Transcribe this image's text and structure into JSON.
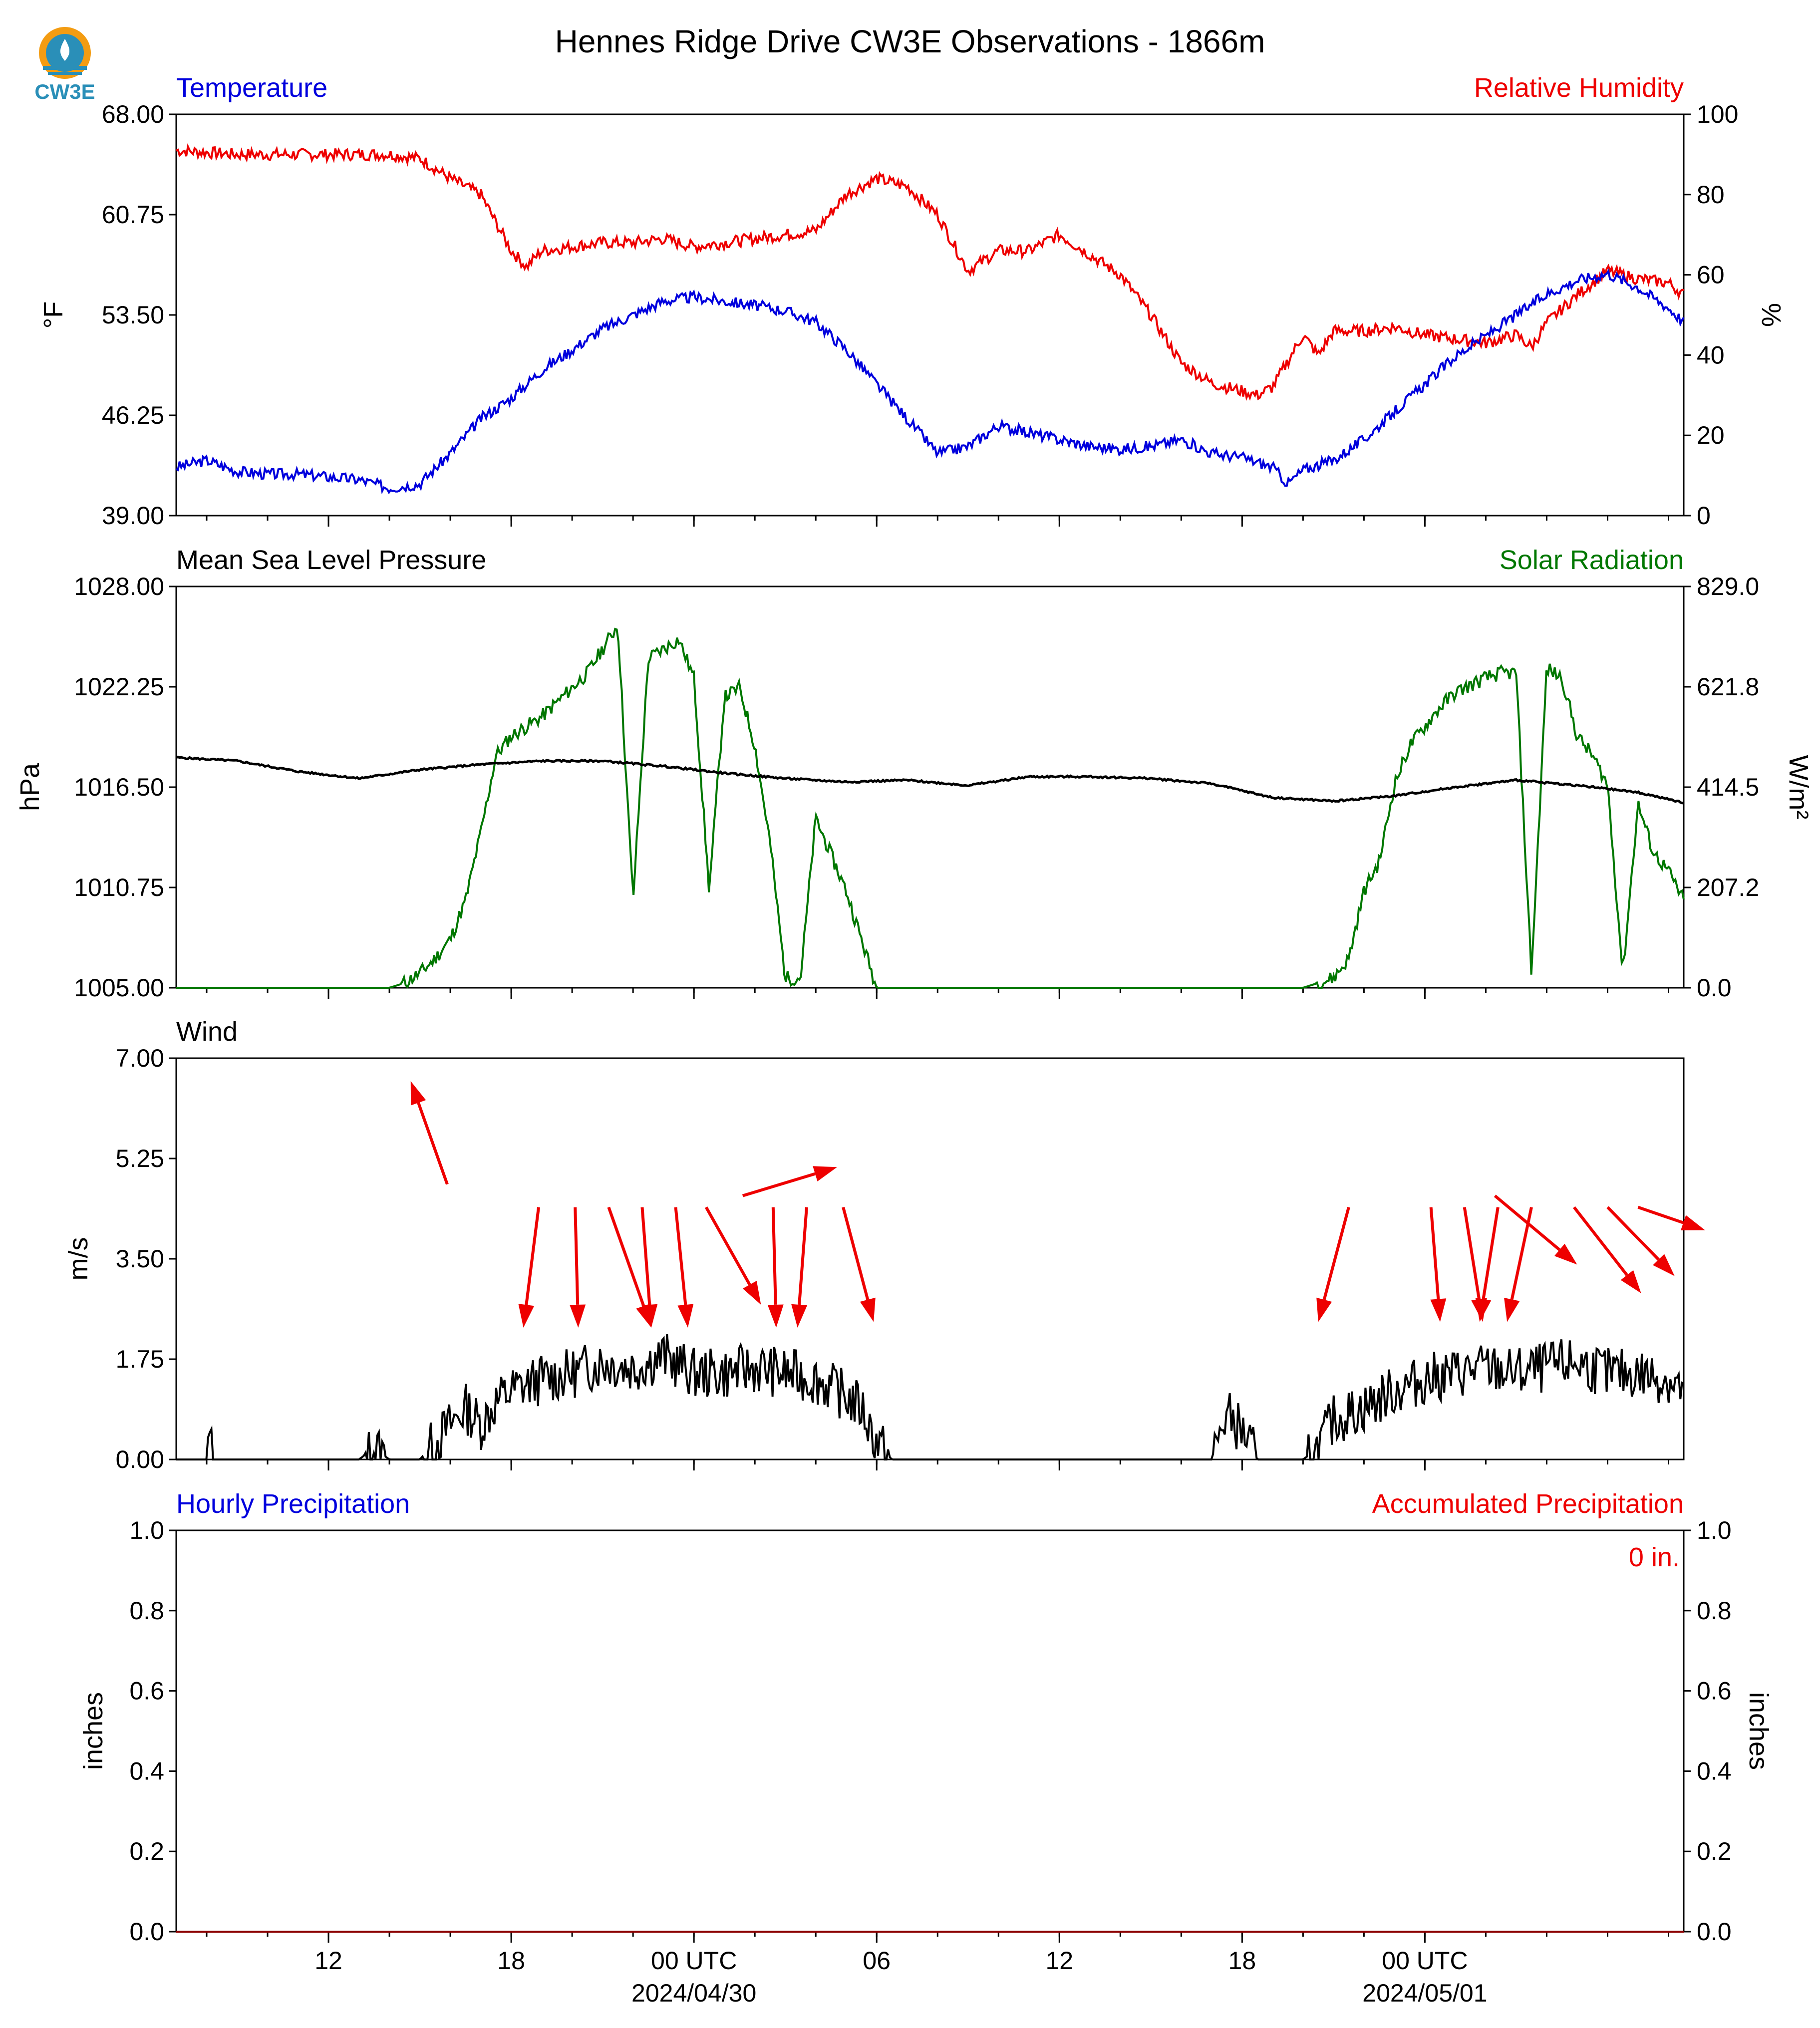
{
  "title": "Hennes Ridge Drive CW3E Observations - 1866m",
  "logo_text": "CW3E",
  "colors": {
    "blue": "#0000dd",
    "red": "#ee0000",
    "green": "#007700",
    "black": "#000000",
    "logo": "#2a8fb8",
    "logo_sun": "#f39c12"
  },
  "x_axis": {
    "ticks": [
      {
        "hour": 12,
        "label": "12",
        "sub": ""
      },
      {
        "hour": 18,
        "label": "18",
        "sub": ""
      },
      {
        "hour": 24,
        "label": "00 UTC",
        "sub": "2024/04/30"
      },
      {
        "hour": 30,
        "label": "06",
        "sub": ""
      },
      {
        "hour": 36,
        "label": "12",
        "sub": ""
      },
      {
        "hour": 42,
        "label": "18",
        "sub": ""
      },
      {
        "hour": 48,
        "label": "00 UTC",
        "sub": "2024/05/01"
      }
    ],
    "minor_every_hours": 2
  },
  "panels": {
    "temp_rh": {
      "left_title": "Temperature",
      "right_title": "Relative Humidity",
      "left_unit": "°F",
      "right_unit": "%",
      "left_ticks": [
        "68.00",
        "60.75",
        "53.50",
        "46.25",
        "39.00"
      ],
      "right_ticks": [
        "100",
        "80",
        "60",
        "40",
        "20",
        "0"
      ]
    },
    "pres_solar": {
      "left_title": "Mean Sea Level Pressure",
      "right_title": "Solar Radiation",
      "left_unit": "hPa",
      "right_unit": "W/m²",
      "left_ticks": [
        "1028.00",
        "1022.25",
        "1016.50",
        "1010.75",
        "1005.00"
      ],
      "right_ticks": [
        "829.0",
        "621.8",
        "414.5",
        "207.2",
        "0.0"
      ]
    },
    "wind": {
      "left_title": "Wind",
      "left_unit": "m/s",
      "left_ticks": [
        "7.00",
        "5.25",
        "3.50",
        "1.75",
        "0.00"
      ]
    },
    "precip": {
      "left_title": "Hourly Precipitation",
      "right_title": "Accumulated Precipitation",
      "left_unit": "inches",
      "right_unit": "inches",
      "left_ticks": [
        "1.0",
        "0.8",
        "0.6",
        "0.4",
        "0.2",
        "0.0"
      ],
      "right_ticks": [
        "1.0",
        "0.8",
        "0.6",
        "0.4",
        "0.2",
        "0.0"
      ],
      "accum_label": "0 in."
    }
  },
  "chart_data": [
    {
      "type": "line",
      "title": "Temperature",
      "xlabel": "",
      "ylabel": "°F",
      "x_units": "hours since 2024-04-29 07 UTC",
      "ylim": [
        39.0,
        68.0
      ],
      "series": [
        {
          "name": "Temperature",
          "axis": "left",
          "x": [
            0,
            1,
            2,
            3,
            4,
            5,
            6,
            7,
            8,
            9,
            10,
            11,
            12,
            13,
            14,
            15,
            16,
            17,
            18,
            19,
            20,
            21,
            22,
            23,
            24,
            25,
            26,
            27,
            28,
            29,
            30,
            31,
            32,
            33,
            34,
            35,
            36,
            36.5,
            37,
            38,
            39,
            40,
            41,
            42,
            43,
            44,
            45,
            46,
            47,
            48,
            49,
            49.5
          ],
          "y": [
            42.5,
            43.0,
            42.2,
            42.0,
            42.0,
            41.8,
            41.6,
            41.0,
            41.3,
            43.5,
            46.0,
            47.5,
            49.5,
            51.0,
            52.5,
            53.5,
            54.5,
            54.8,
            54.5,
            54.2,
            53.8,
            53.0,
            51.0,
            48.5,
            46.0,
            43.5,
            44.0,
            45.5,
            45.0,
            44.5,
            44.0,
            43.8,
            44.0,
            44.5,
            43.5,
            43.2,
            42.5,
            41.3,
            42.3,
            43.0,
            44.5,
            46.5,
            48.5,
            50.5,
            52.0,
            53.5,
            55.0,
            56.0,
            56.5,
            55.5,
            54.0,
            53.0
          ]
        },
        {
          "name": "Relative Humidity",
          "axis": "right",
          "ylim": [
            0,
            100
          ],
          "x": [
            0,
            2,
            4,
            6,
            7,
            8,
            9,
            10,
            11,
            11.5,
            12,
            13,
            14,
            15,
            16,
            17,
            18,
            19,
            20,
            21,
            22,
            23,
            24,
            25,
            26,
            27,
            28,
            29,
            30,
            31,
            32,
            33,
            34,
            35,
            35.5,
            36,
            37,
            37.5,
            38,
            39,
            40,
            41,
            42,
            43,
            44,
            44.5,
            45,
            46,
            47,
            48,
            49,
            49.5
          ],
          "y": [
            91,
            90,
            90,
            90,
            90,
            89,
            84,
            80,
            66,
            62,
            66,
            67,
            68,
            68,
            69,
            67,
            68,
            69,
            70,
            71,
            80,
            84,
            82,
            75,
            61,
            66,
            66,
            70,
            65,
            60,
            50,
            38,
            33,
            31,
            30,
            32,
            45,
            40,
            46,
            46,
            47,
            45,
            44,
            43,
            45,
            42,
            48,
            55,
            61,
            59,
            58,
            55
          ]
        }
      ]
    },
    {
      "type": "line",
      "title": "Mean Sea Level Pressure",
      "xlabel": "",
      "ylabel": "hPa",
      "x_units": "hours since 2024-04-29 07 UTC",
      "ylim": [
        1005.0,
        1028.0
      ],
      "series": [
        {
          "name": "Mean Sea Level Pressure",
          "axis": "left",
          "x": [
            0,
            2,
            4,
            6,
            8,
            10,
            12,
            14,
            16,
            18,
            20,
            22,
            24,
            26,
            28,
            30,
            32,
            34,
            36,
            38,
            40,
            42,
            44,
            46,
            48,
            49.5
          ],
          "y": [
            1018.2,
            1018.0,
            1017.4,
            1017.0,
            1017.5,
            1017.8,
            1018.0,
            1018.0,
            1017.7,
            1017.3,
            1017.0,
            1016.8,
            1016.9,
            1016.6,
            1017.1,
            1017.1,
            1017.0,
            1016.7,
            1015.9,
            1015.7,
            1016.0,
            1016.5,
            1016.9,
            1016.6,
            1016.2,
            1015.6
          ]
        },
        {
          "name": "Solar Radiation",
          "axis": "right",
          "ylim": [
            0,
            829
          ],
          "x": [
            0,
            6,
            7,
            7.5,
            8,
            8.5,
            9,
            9.5,
            10,
            10.5,
            11,
            12,
            13,
            13.5,
            14,
            14.5,
            15,
            15.5,
            16,
            16.5,
            17,
            17.5,
            18,
            18.5,
            19,
            19.5,
            20,
            20.5,
            21,
            22,
            22.5,
            23,
            24,
            30,
            36,
            37,
            38,
            38.5,
            39,
            39.5,
            40,
            40.5,
            41,
            41.5,
            42,
            43,
            43.5,
            44,
            44.5,
            45,
            45.5,
            46,
            46.5,
            47,
            47.5,
            48,
            48.5,
            49,
            49.5
          ],
          "y": [
            0,
            0,
            0,
            10,
            30,
            60,
            100,
            180,
            320,
            480,
            520,
            560,
            620,
            650,
            700,
            750,
            180,
            680,
            700,
            720,
            640,
            200,
            600,
            620,
            500,
            300,
            20,
            20,
            350,
            200,
            100,
            0,
            0,
            0,
            0,
            0,
            20,
            60,
            200,
            260,
            420,
            500,
            540,
            580,
            610,
            640,
            650,
            650,
            30,
            660,
            640,
            520,
            480,
            420,
            30,
            380,
            280,
            240,
            180
          ]
        }
      ]
    },
    {
      "type": "line",
      "title": "Wind",
      "xlabel": "",
      "ylabel": "m/s",
      "x_units": "hours since 2024-04-29 07 UTC",
      "ylim": [
        0.0,
        7.0
      ],
      "series": [
        {
          "name": "Wind speed",
          "x": [
            0,
            1,
            1.1,
            1.2,
            6,
            6.5,
            7,
            8,
            8.5,
            9,
            9.5,
            10,
            10.5,
            11,
            12,
            13,
            14,
            15,
            16,
            17,
            18,
            19,
            20,
            21,
            22,
            22.5,
            23,
            23.5,
            24,
            34,
            34.5,
            35,
            35.5,
            36,
            37,
            37.5,
            38,
            39,
            40,
            41,
            42,
            43,
            44,
            45,
            46,
            47,
            48,
            49,
            49.5
          ],
          "y": [
            0,
            0,
            0.4,
            0,
            0,
            0.2,
            0,
            0,
            0.3,
            0.6,
            0.9,
            0.6,
            1.0,
            1.2,
            1.4,
            1.5,
            1.7,
            1.6,
            1.8,
            1.5,
            1.5,
            1.6,
            1.5,
            1.4,
            1.1,
            0.9,
            0.3,
            0,
            0,
            0,
            0.8,
            0.5,
            0,
            0,
            0,
            0.2,
            0.7,
            0.9,
            1.2,
            1.4,
            1.5,
            1.6,
            1.5,
            1.6,
            1.7,
            1.5,
            1.5,
            1.4,
            1.2
          ]
        }
      ],
      "wind_arrows": [
        {
          "x": 8.9,
          "y": 4.8,
          "dx": -1.2,
          "dy": 1.8
        },
        {
          "x": 11.9,
          "y": 4.4,
          "dx": -0.5,
          "dy": -2.1
        },
        {
          "x": 13.1,
          "y": 4.4,
          "dx": 0.1,
          "dy": -2.1
        },
        {
          "x": 14.2,
          "y": 4.4,
          "dx": 1.4,
          "dy": -2.1
        },
        {
          "x": 15.3,
          "y": 4.4,
          "dx": 0.3,
          "dy": -2.1
        },
        {
          "x": 16.4,
          "y": 4.4,
          "dx": 0.4,
          "dy": -2.1
        },
        {
          "x": 17.4,
          "y": 4.4,
          "dx": 1.8,
          "dy": -1.7
        },
        {
          "x": 18.6,
          "y": 4.6,
          "dx": 3.1,
          "dy": 0.5
        },
        {
          "x": 19.6,
          "y": 4.4,
          "dx": 0.1,
          "dy": -2.1
        },
        {
          "x": 20.7,
          "y": 4.4,
          "dx": -0.3,
          "dy": -2.1
        },
        {
          "x": 21.9,
          "y": 4.4,
          "dx": 1.0,
          "dy": -2.0
        },
        {
          "x": 38.5,
          "y": 4.4,
          "dx": -1.0,
          "dy": -2.0
        },
        {
          "x": 41.2,
          "y": 4.4,
          "dx": 0.3,
          "dy": -2.0
        },
        {
          "x": 42.3,
          "y": 4.4,
          "dx": 0.6,
          "dy": -2.0
        },
        {
          "x": 43.4,
          "y": 4.4,
          "dx": -0.6,
          "dy": -2.0
        },
        {
          "x": 44.5,
          "y": 4.4,
          "dx": -0.8,
          "dy": -2.0
        },
        {
          "x": 43.3,
          "y": 4.6,
          "dx": 2.7,
          "dy": -1.2
        },
        {
          "x": 45.9,
          "y": 4.4,
          "dx": 2.2,
          "dy": -1.5
        },
        {
          "x": 47.0,
          "y": 4.4,
          "dx": 2.2,
          "dy": -1.2
        },
        {
          "x": 48.0,
          "y": 4.4,
          "dx": 2.2,
          "dy": -0.4
        }
      ]
    },
    {
      "type": "line",
      "title": "Hourly Precipitation",
      "xlabel": "",
      "ylabel": "inches",
      "x_units": "hours since 2024-04-29 07 UTC",
      "ylim": [
        0.0,
        1.0
      ],
      "series": [
        {
          "name": "Hourly Precipitation",
          "axis": "left",
          "x": [
            0,
            49.5
          ],
          "y": [
            0,
            0
          ]
        },
        {
          "name": "Accumulated Precipitation",
          "axis": "right",
          "x": [
            0,
            49.5
          ],
          "y": [
            0,
            0
          ]
        }
      ]
    }
  ]
}
